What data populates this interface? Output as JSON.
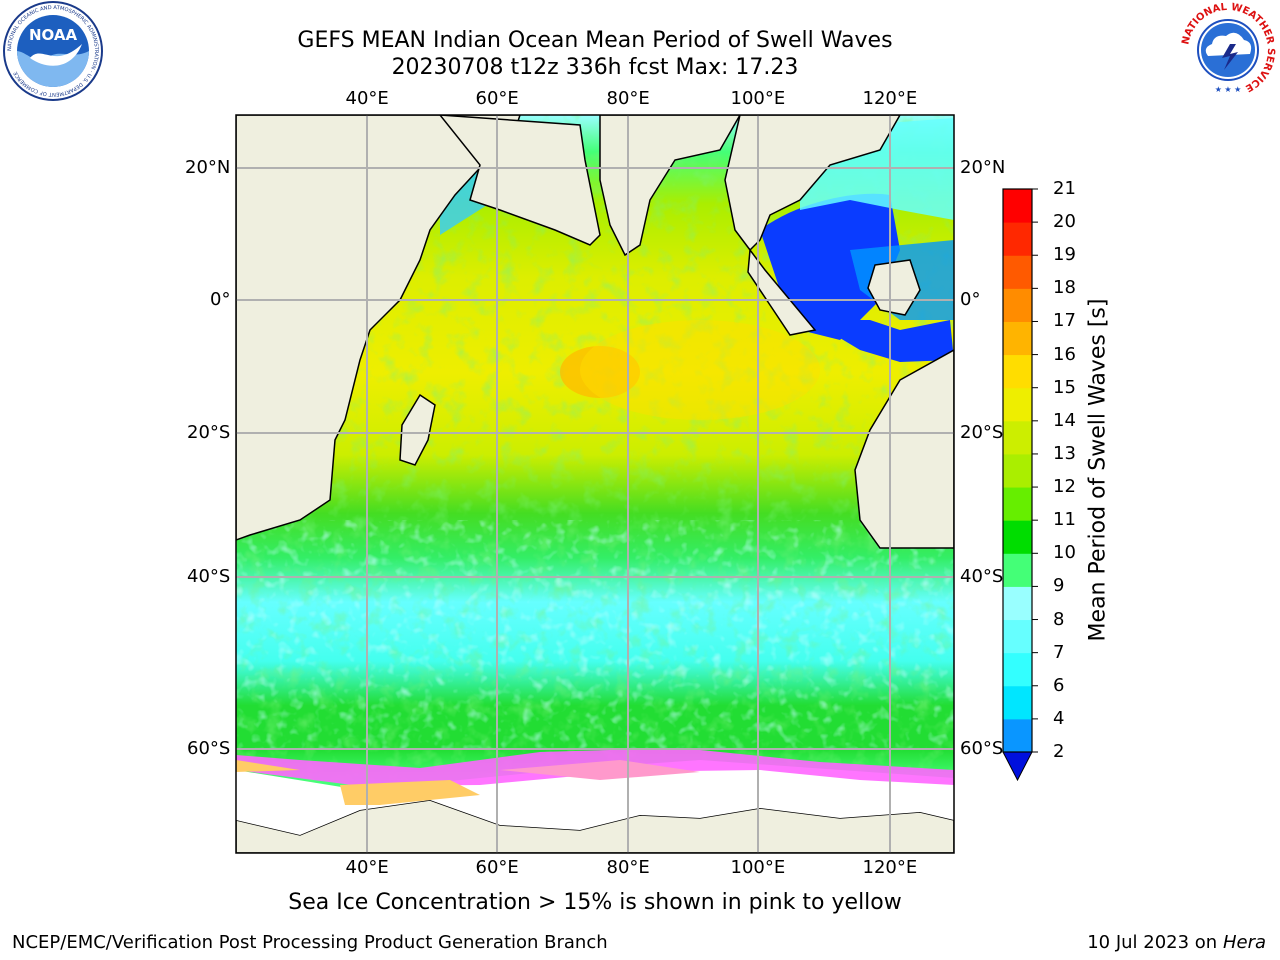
{
  "title": {
    "line1": "GEFS MEAN Indian Ocean Mean Period of Swell Waves",
    "line2": "20230708 t12z 336h fcst   Max: 17.23"
  },
  "map": {
    "lon_labels": [
      "40°E",
      "60°E",
      "80°E",
      "100°E",
      "120°E"
    ],
    "lat_labels": [
      "20°N",
      "0°",
      "20°S",
      "40°S",
      "60°S"
    ],
    "lon_range": [
      20,
      130
    ],
    "lat_range": [
      -72,
      28
    ],
    "land_color": "#efefdf",
    "ice_colors": [
      "#ff66ff",
      "#ff99cc",
      "#ffcc66"
    ]
  },
  "colorbar": {
    "title": "Mean Period of Swell Waves [s]",
    "ticks": [
      "2",
      "4",
      "6",
      "7",
      "8",
      "9",
      "10",
      "11",
      "12",
      "13",
      "14",
      "15",
      "16",
      "17",
      "18",
      "19",
      "20",
      "21"
    ],
    "colors": [
      "#0a3cff",
      "#0a96ff",
      "#00e6ff",
      "#33ffff",
      "#66ffff",
      "#99ffff",
      "#44ff77",
      "#00dd00",
      "#66ee00",
      "#aaee00",
      "#ccee00",
      "#eeee00",
      "#ffdd00",
      "#ffb400",
      "#ff8c00",
      "#ff5a00",
      "#ff2800",
      "#ff0000"
    ],
    "under_color": "#0010dd"
  },
  "footnote": "Sea Ice Concentration > 15% is shown in pink to yellow",
  "credit": "NCEP/EMC/Verification Post Processing Product Generation Branch",
  "date_prefix": "10 Jul 2023 on ",
  "date_machine": "Hera",
  "logos": {
    "noaa_text": "NOAA",
    "noaa_ring_text": "NATIONAL OCEANIC AND ATMOSPHERIC ADMINISTRATION · U.S. DEPARTMENT OF COMMERCE",
    "nws_ring_text": "NATIONAL WEATHER SERVICE"
  }
}
